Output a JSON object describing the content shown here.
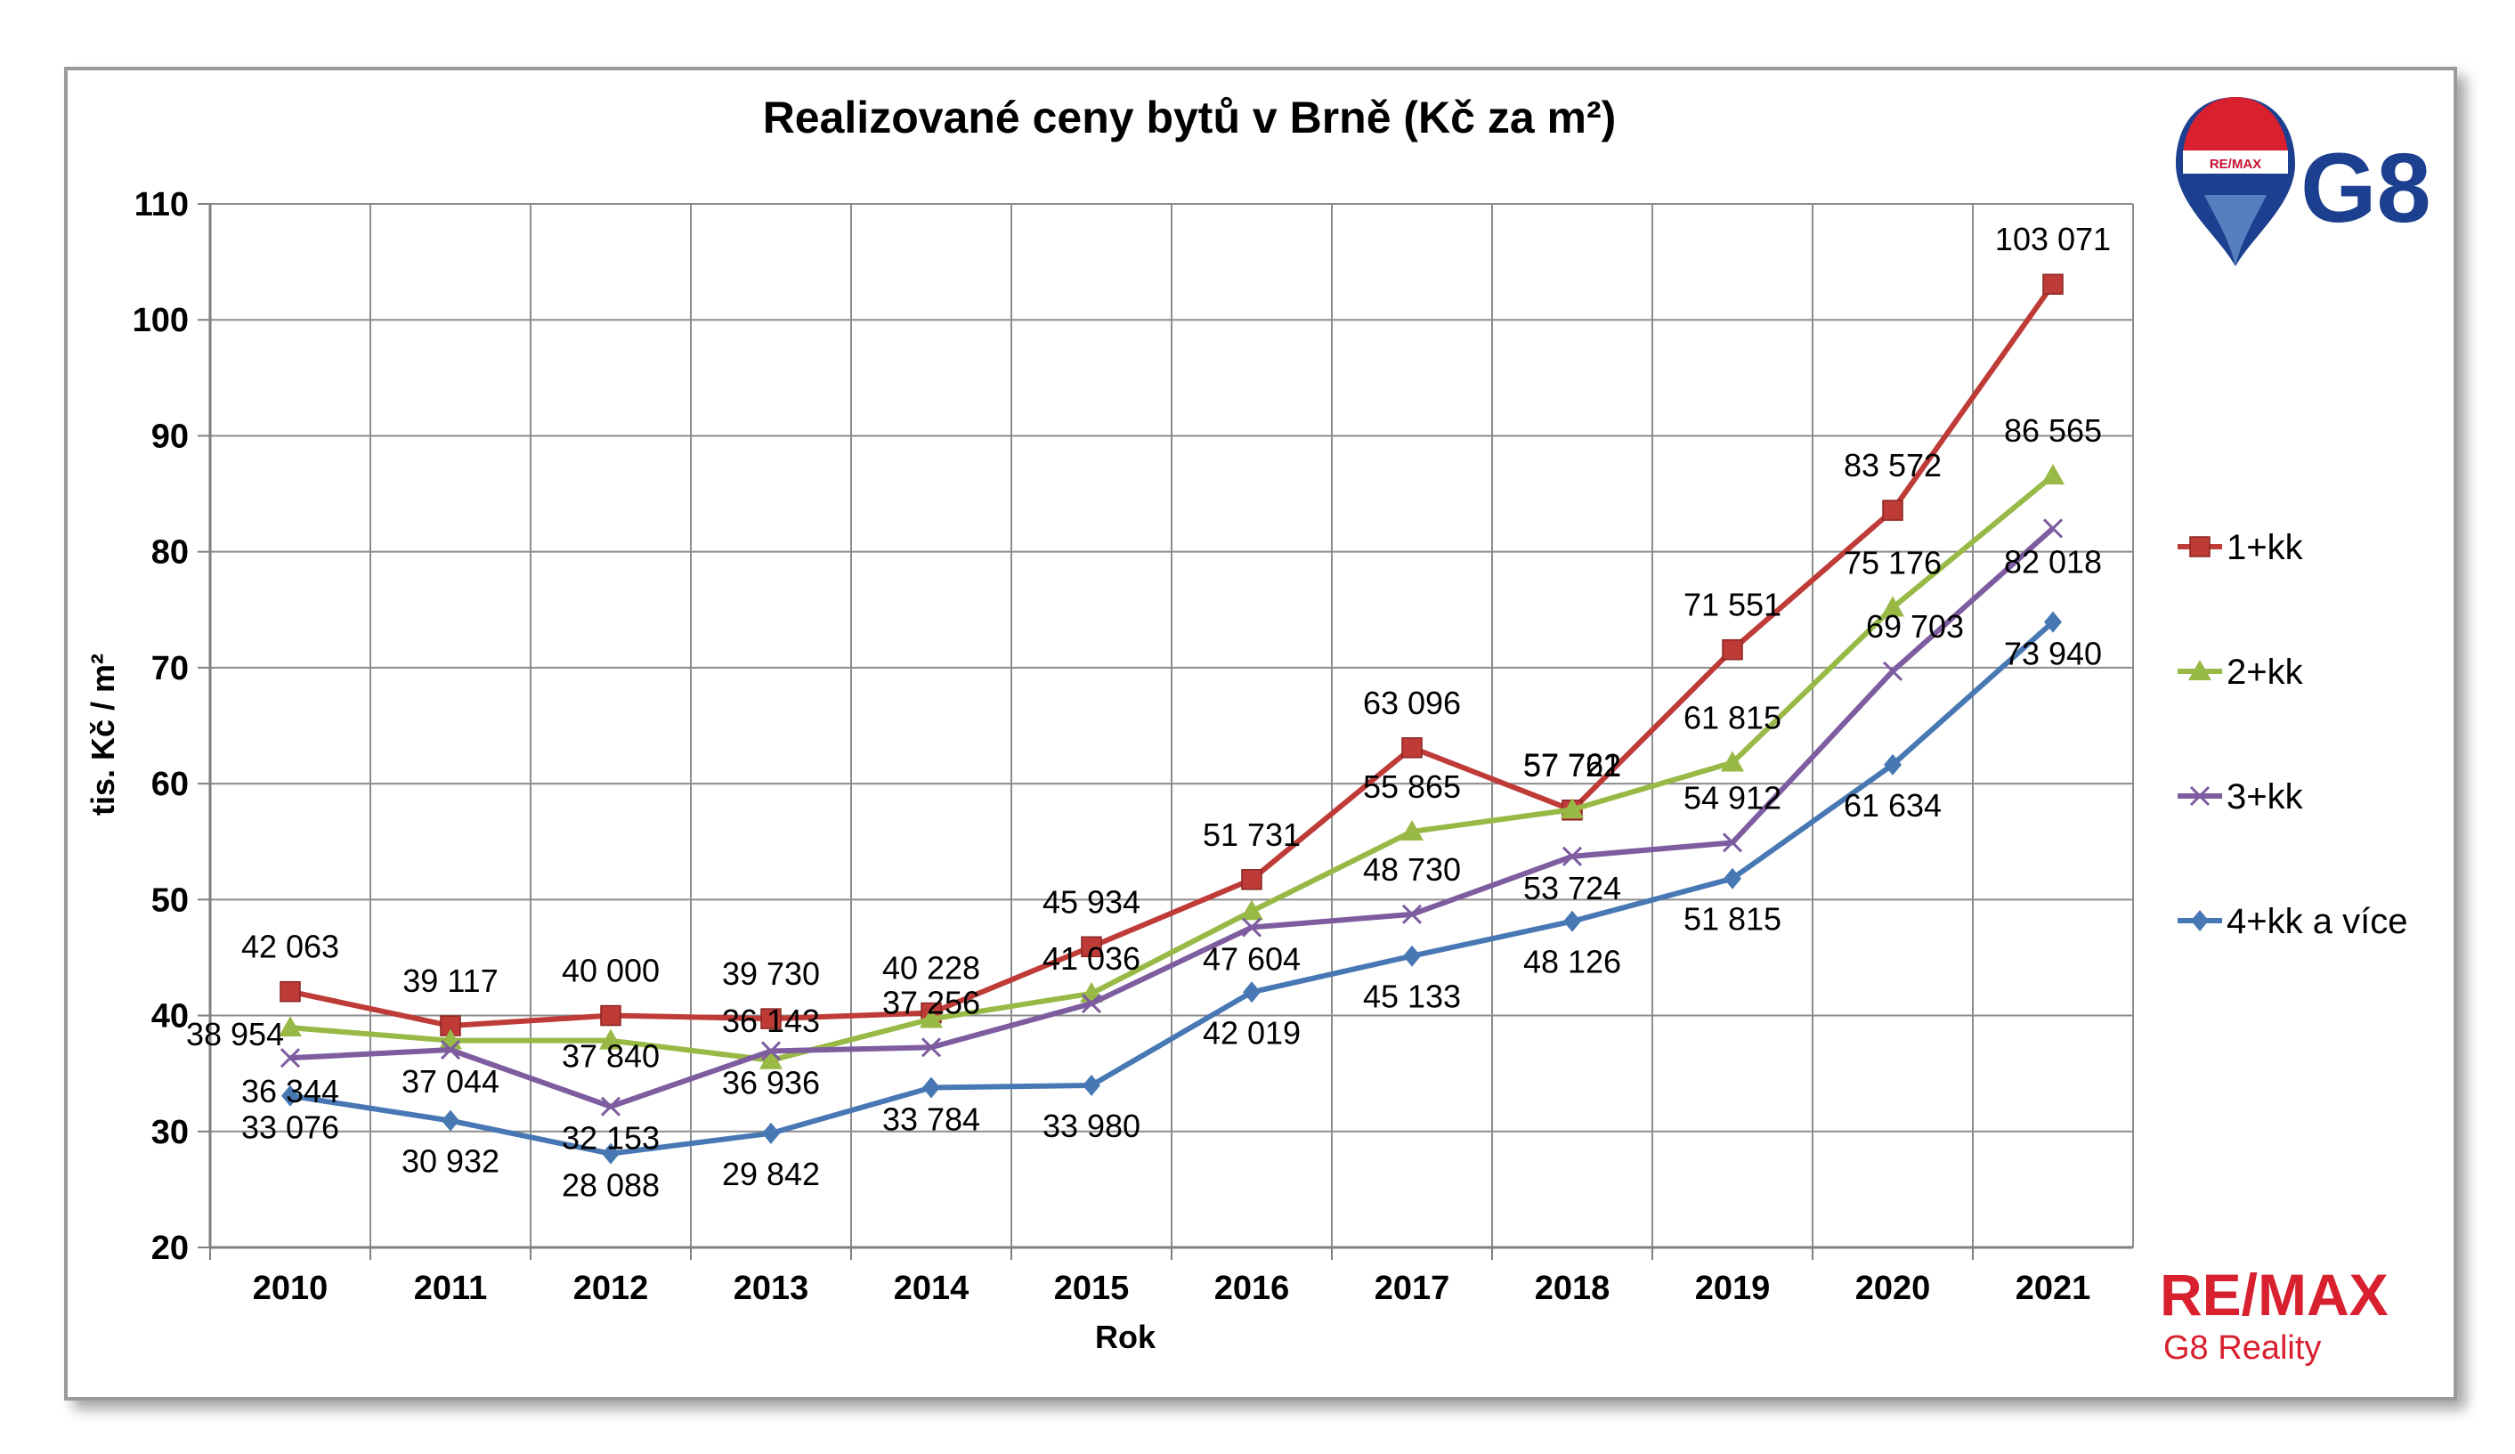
{
  "chart_data": {
    "type": "line",
    "title": "Realizované ceny bytů v Brně (Kč za m²)",
    "xlabel": "Rok",
    "ylabel": "tis. Kč / m²",
    "ylim": [
      20,
      110
    ],
    "yticks": [
      "20",
      "30",
      "40",
      "50",
      "60",
      "70",
      "80",
      "90",
      "100",
      "110"
    ],
    "categories": [
      "2010",
      "2011",
      "2012",
      "2013",
      "2014",
      "2015",
      "2016",
      "2017",
      "2018",
      "2019",
      "2020",
      "2021"
    ],
    "grid": true,
    "legend_position": "right",
    "series": [
      {
        "name": "1+kk",
        "color": "#be3b37",
        "marker": "square",
        "values": [
          42.063,
          39.117,
          40.0,
          39.73,
          40.228,
          45.934,
          51.731,
          63.096,
          57.722,
          71.551,
          83.572,
          103.071
        ],
        "labels": [
          "42 063",
          "39 117",
          "40 000",
          "39 730",
          "40 228",
          "45 934",
          "51 731",
          "63 096",
          "57 722",
          "71 551",
          "83 572",
          "103 071"
        ]
      },
      {
        "name": "2+kk",
        "color": "#98b946",
        "marker": "triangle",
        "values": [
          38.954,
          37.84,
          37.84,
          36.143,
          39.7,
          41.9,
          49.0,
          55.865,
          57.761,
          61.815,
          75.176,
          86.565
        ],
        "labels": [
          "38 954",
          "",
          "37 840",
          "36 143",
          "",
          "",
          "",
          "55 865",
          "57 761",
          "61 815",
          "75 176",
          "86 565"
        ]
      },
      {
        "name": "3+kk",
        "color": "#7d5c9f",
        "marker": "x",
        "values": [
          36.344,
          37.044,
          32.153,
          36.936,
          37.256,
          41.036,
          47.604,
          48.73,
          53.724,
          54.912,
          69.703,
          82.018
        ],
        "labels": [
          "36 344",
          "37 044",
          "32 153",
          "36 936",
          "37 256",
          "41 036",
          "47 604",
          "48 730",
          "53 724",
          "54 912",
          "69 703",
          "82 018"
        ]
      },
      {
        "name": "4+kk a více",
        "color": "#4878b4",
        "marker": "diamond",
        "values": [
          33.076,
          30.932,
          28.088,
          29.842,
          33.784,
          33.98,
          42.019,
          45.133,
          48.126,
          51.815,
          61.634,
          73.94
        ],
        "labels": [
          "33 076",
          "30 932",
          "28 088",
          "29 842",
          "33 784",
          "33 980",
          "42 019",
          "45 133",
          "48 126",
          "51 815",
          "61 634",
          "73 940"
        ]
      }
    ]
  },
  "logos": {
    "balloon_text": "RE/MAX",
    "g8": "G8",
    "remax_word": "RE/MAX",
    "remax_sub": "G8 Reality"
  },
  "colors": {
    "remax_red": "#d8202f",
    "remax_blue": "#1c3f8f",
    "grid": "#8c8c8c"
  }
}
